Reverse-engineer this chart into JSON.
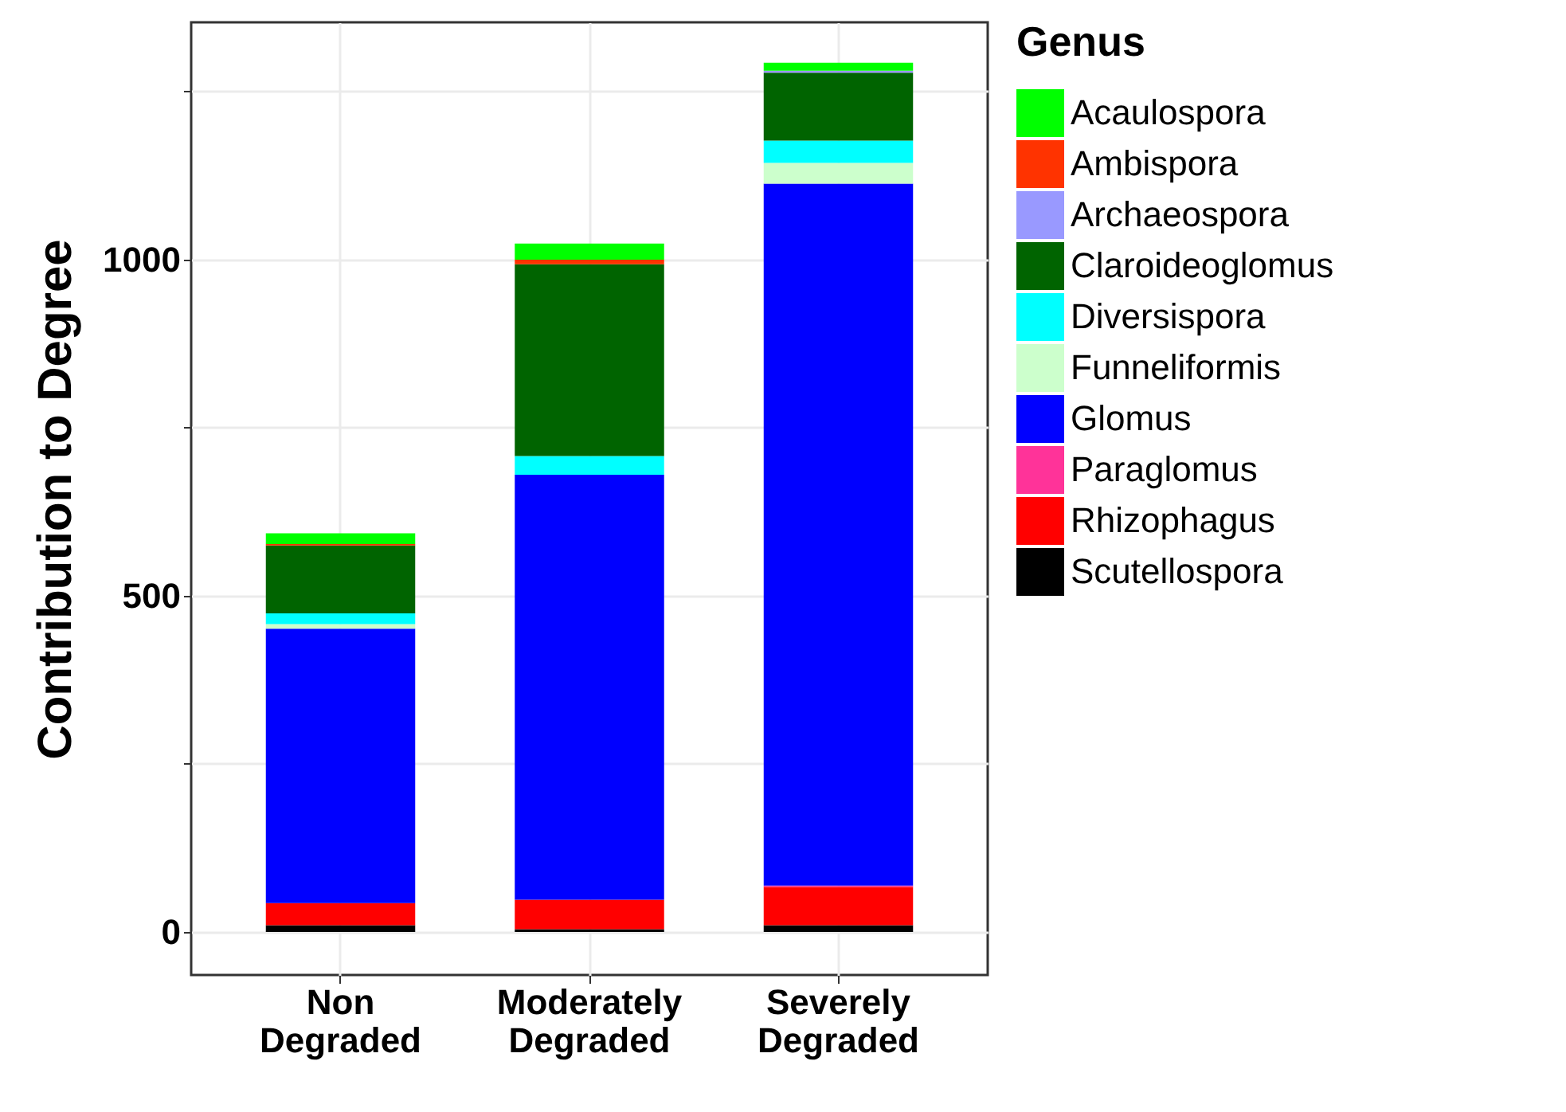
{
  "chart_data": {
    "type": "bar",
    "stacked": true,
    "ylabel": "Contribution to Degree",
    "legend_title": "Genus",
    "legend": "right",
    "grid": true,
    "categories": [
      "Non Degraded",
      "Moderately Degraded",
      "Severely Degraded"
    ],
    "ylim": [
      -64,
      1353
    ],
    "yticks": [
      0,
      {
        "value": 250,
        "label": null
      },
      500,
      {
        "value": 750,
        "label": null
      },
      1000,
      {
        "value": 1250,
        "label": null
      }
    ],
    "series": [
      {
        "name": "Scutellospora",
        "color": "#000000",
        "values": [
          10,
          4,
          10
        ]
      },
      {
        "name": "Rhizophagus",
        "color": "#ff0000",
        "values": [
          33,
          44,
          57
        ]
      },
      {
        "name": "Paraglomus",
        "color": "#ff3399",
        "values": [
          0,
          0,
          2
        ]
      },
      {
        "name": "Glomus",
        "color": "#0000ff",
        "values": [
          408,
          632,
          1044
        ]
      },
      {
        "name": "Funneliformis",
        "color": "#ccffcc",
        "values": [
          7,
          0,
          31
        ]
      },
      {
        "name": "Diversispora",
        "color": "#00ffff",
        "values": [
          16,
          28,
          33
        ]
      },
      {
        "name": "Claroideoglomus",
        "color": "#006400",
        "values": [
          101,
          285,
          101
        ]
      },
      {
        "name": "Archaeospora",
        "color": "#9999ff",
        "values": [
          0,
          0,
          3
        ]
      },
      {
        "name": "Ambispora",
        "color": "#ff3300",
        "values": [
          2,
          7,
          0
        ]
      },
      {
        "name": "Acaulospora",
        "color": "#00ff00",
        "values": [
          16,
          24,
          12
        ]
      }
    ]
  }
}
